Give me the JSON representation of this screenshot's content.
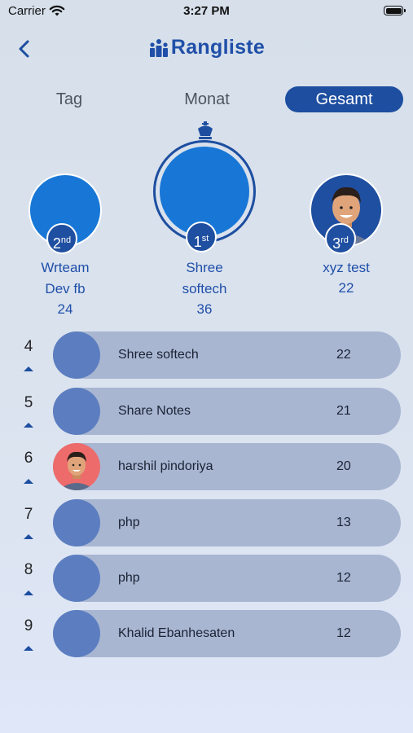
{
  "status": {
    "carrier": "Carrier",
    "time": "3:27 PM"
  },
  "header": {
    "title": "Rangliste"
  },
  "tabs": [
    {
      "label": "Tag",
      "active": false
    },
    {
      "label": "Monat",
      "active": false
    },
    {
      "label": "Gesamt",
      "active": true
    }
  ],
  "podium": {
    "second": {
      "rank": "2",
      "suffix": "nd",
      "name_line1": "Wrteam",
      "name_line2": "Dev fb",
      "score": "24"
    },
    "first": {
      "rank": "1",
      "suffix": "st",
      "name_line1": "Shree",
      "name_line2": "softech",
      "score": "36"
    },
    "third": {
      "rank": "3",
      "suffix": "rd",
      "name_line1": "xyz test",
      "name_line2": "",
      "score": "22"
    }
  },
  "list": [
    {
      "rank": "4",
      "name": "Shree softech",
      "score": "22",
      "avatar": "blank"
    },
    {
      "rank": "5",
      "name": "Share Notes",
      "score": "21",
      "avatar": "blank"
    },
    {
      "rank": "6",
      "name": "harshil pindoriya",
      "score": "20",
      "avatar": "cartoon-red"
    },
    {
      "rank": "7",
      "name": "php",
      "score": "13",
      "avatar": "blank"
    },
    {
      "rank": "8",
      "name": "php",
      "score": "12",
      "avatar": "blank"
    },
    {
      "rank": "9",
      "name": "Khalid Ebanhesaten",
      "score": "12",
      "avatar": "blank"
    }
  ],
  "colors": {
    "accent": "#1d4ea0",
    "avatar_blue": "#1877d6",
    "row_bg": "#a8b6d2"
  }
}
